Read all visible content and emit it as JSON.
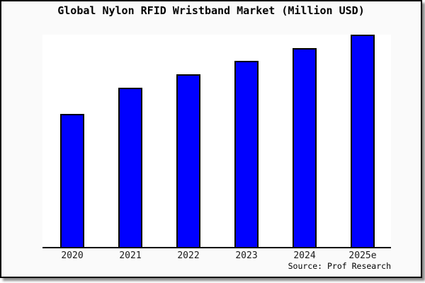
{
  "chart_data": {
    "type": "bar",
    "title": "Global Nylon RFID Wristband Market (Million USD)",
    "categories": [
      "2020",
      "2021",
      "2022",
      "2023",
      "2024",
      "2025e"
    ],
    "values": [
      62.8,
      75.1,
      81.4,
      87.7,
      93.7,
      100
    ],
    "values_unit": "relative bar height, % of tallest bar (chart shows no numeric y-axis)",
    "xlabel": "",
    "ylabel": "",
    "ylim": [
      0,
      100
    ],
    "grid": false,
    "legend": false,
    "y_axis_labels_visible": false,
    "source_note": "Source: Prof Research",
    "colors": {
      "bar_fill": "#0000FF",
      "bar_edge": "#000000",
      "plot_background": "#FFFFFF",
      "canvas_background": "#FAFAFA",
      "frame_border": "#000000",
      "text": "#000000"
    }
  }
}
